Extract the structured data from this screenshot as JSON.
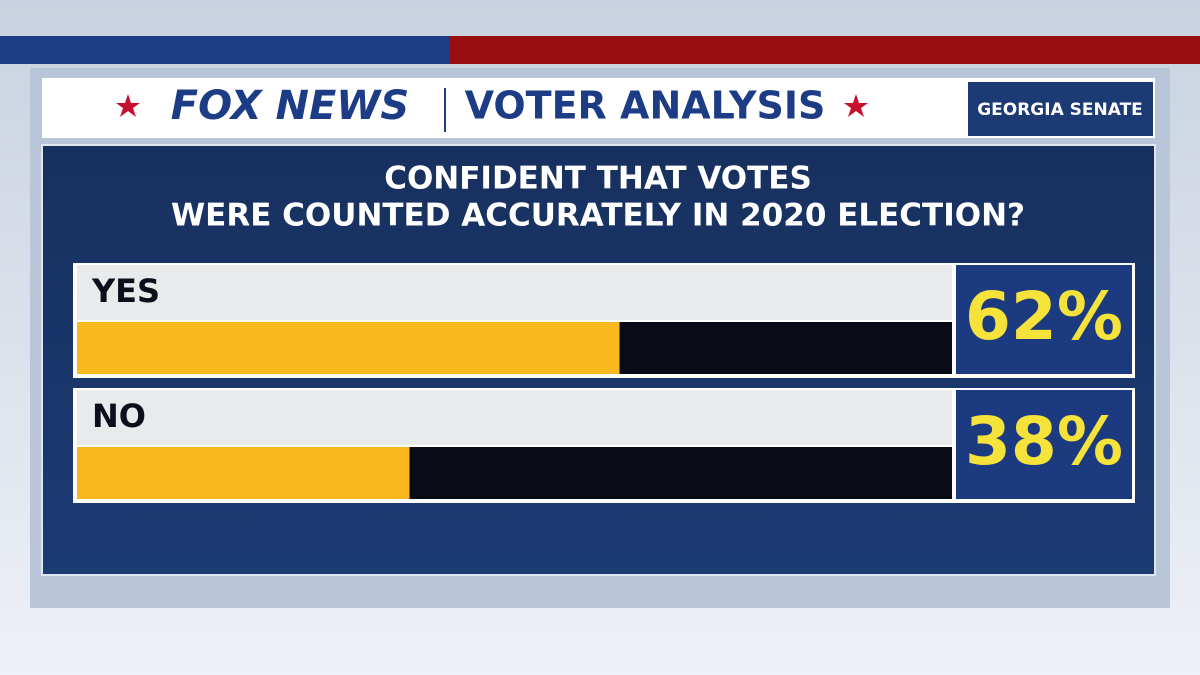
{
  "chart_data": {
    "type": "hbar",
    "source": "FOX NEWS",
    "header": "VOTER ANALYSIS",
    "tag": "GEORGIA SENATE",
    "title": [
      "CONFIDENT THAT VOTES",
      "WERE COUNTED ACCURATELY IN 2020 ELECTION?"
    ],
    "categories": [
      "YES",
      "NO"
    ],
    "values": [
      62,
      38
    ],
    "value_labels": [
      "62%",
      "38%"
    ],
    "color": "#f9b81c",
    "xlim": [
      0,
      100
    ]
  }
}
